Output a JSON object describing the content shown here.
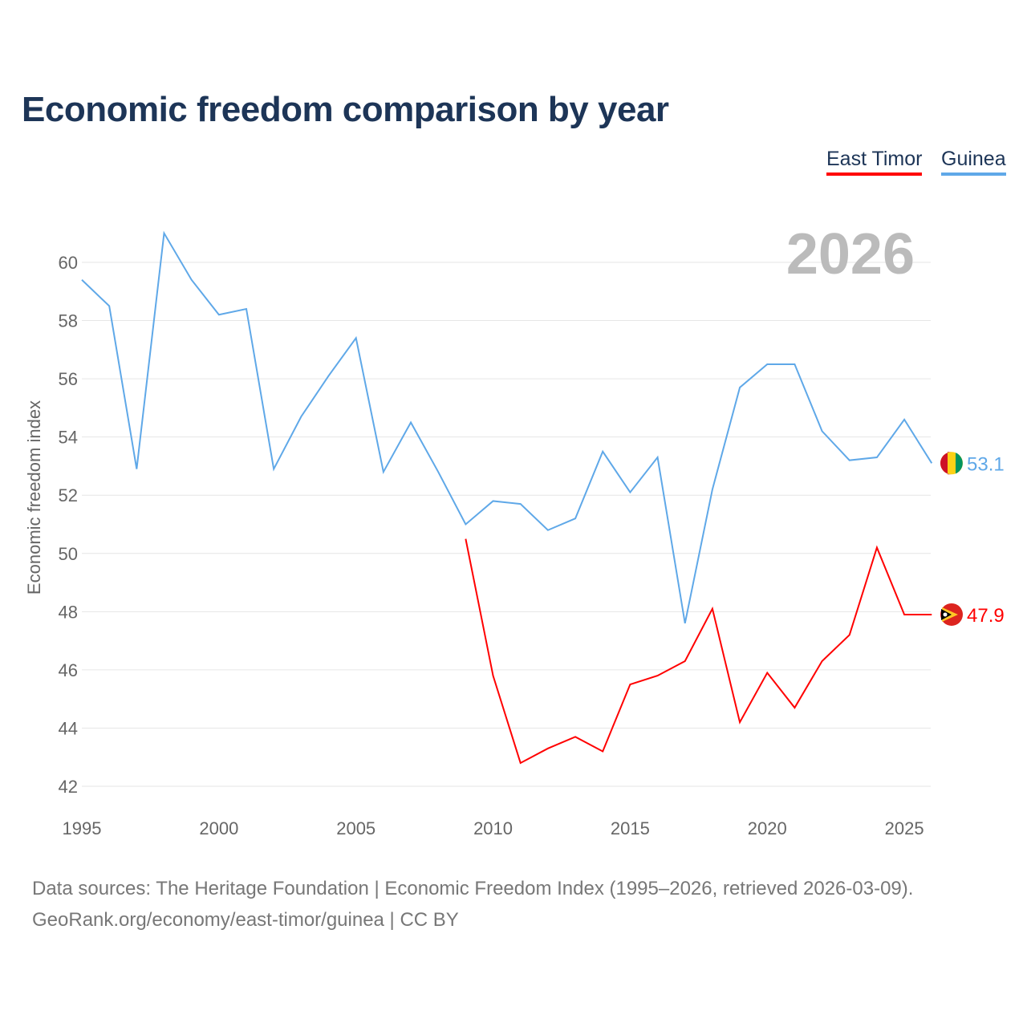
{
  "chart_data": {
    "type": "line",
    "title": "Economic freedom comparison by year",
    "ylabel": "Economic freedom index",
    "xlabel": "",
    "ylim": [
      41.5,
      61.5
    ],
    "xlim": [
      1995,
      2026
    ],
    "yticks": [
      42,
      44,
      46,
      48,
      50,
      52,
      54,
      56,
      58,
      60
    ],
    "xticks": [
      1995,
      2000,
      2005,
      2010,
      2015,
      2020,
      2025
    ],
    "year_label": "2026",
    "grid": true,
    "legend_placement": "top-right",
    "series": [
      {
        "name": "East Timor",
        "color": "#ff0000",
        "end_label": "47.9",
        "x": [
          2009,
          2010,
          2011,
          2012,
          2013,
          2014,
          2015,
          2016,
          2017,
          2018,
          2019,
          2020,
          2021,
          2022,
          2023,
          2024,
          2025,
          2026
        ],
        "values": [
          50.5,
          45.8,
          42.8,
          43.3,
          43.7,
          43.2,
          45.5,
          45.8,
          46.3,
          48.1,
          44.2,
          45.9,
          44.7,
          46.3,
          47.2,
          50.2,
          47.9,
          47.9
        ]
      },
      {
        "name": "Guinea",
        "color": "#5fa8e8",
        "end_label": "53.1",
        "x": [
          1995,
          1996,
          1997,
          1998,
          1999,
          2000,
          2001,
          2002,
          2003,
          2004,
          2005,
          2006,
          2007,
          2008,
          2009,
          2010,
          2011,
          2012,
          2013,
          2014,
          2015,
          2016,
          2017,
          2018,
          2019,
          2020,
          2021,
          2022,
          2023,
          2024,
          2025,
          2026
        ],
        "values": [
          59.4,
          58.5,
          52.9,
          61.0,
          59.4,
          58.2,
          58.4,
          52.9,
          54.7,
          56.1,
          57.4,
          52.8,
          54.5,
          52.8,
          51.0,
          51.8,
          51.7,
          50.8,
          51.2,
          53.5,
          52.1,
          53.3,
          47.6,
          52.2,
          55.7,
          56.5,
          56.5,
          54.2,
          53.2,
          53.3,
          54.6,
          53.1
        ]
      }
    ]
  },
  "footer": {
    "line1": "Data sources: The Heritage Foundation | Economic Freedom Index (1995–2026, retrieved 2026-03-09).",
    "line2": "GeoRank.org/economy/east-timor/guinea | CC BY"
  }
}
